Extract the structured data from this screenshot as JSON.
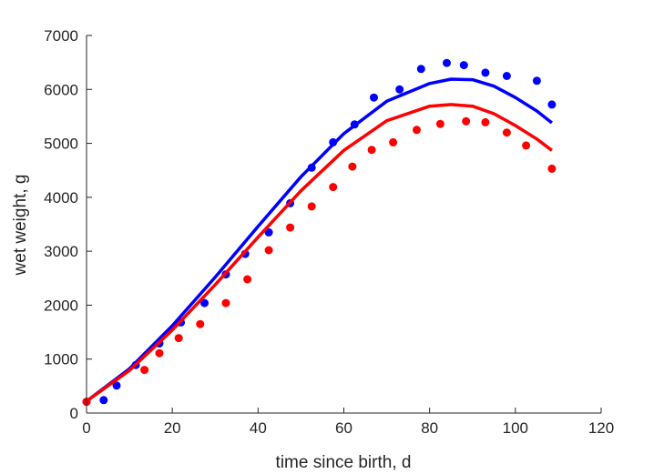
{
  "chart_data": {
    "type": "scatter",
    "title": "",
    "xlabel": "time since birth, d",
    "ylabel": "wet weight, g",
    "xlim": [
      0,
      120
    ],
    "ylim": [
      0,
      7000
    ],
    "xticks": [
      0,
      20,
      40,
      60,
      80,
      100,
      120
    ],
    "yticks": [
      0,
      1000,
      2000,
      3000,
      4000,
      5000,
      6000,
      7000
    ],
    "grid": false,
    "legend": "none",
    "series": [
      {
        "color": "#0000ff",
        "points": [
          [
            0,
            210
          ],
          [
            4,
            240
          ],
          [
            7,
            510
          ],
          [
            11.5,
            890
          ],
          [
            17,
            1290
          ],
          [
            22,
            1680
          ],
          [
            27.5,
            2040
          ],
          [
            32.5,
            2570
          ],
          [
            37,
            2950
          ],
          [
            42.5,
            3350
          ],
          [
            47.5,
            3890
          ],
          [
            52.5,
            4550
          ],
          [
            57.5,
            5020
          ],
          [
            62.5,
            5350
          ],
          [
            67,
            5850
          ],
          [
            73,
            6000
          ],
          [
            78,
            6380
          ],
          [
            84,
            6490
          ],
          [
            88,
            6450
          ],
          [
            93,
            6310
          ],
          [
            98,
            6250
          ],
          [
            105,
            6160
          ],
          [
            108.5,
            5720
          ]
        ],
        "fit": [
          [
            0,
            220
          ],
          [
            10,
            820
          ],
          [
            20,
            1620
          ],
          [
            30,
            2520
          ],
          [
            40,
            3460
          ],
          [
            50,
            4380
          ],
          [
            60,
            5180
          ],
          [
            70,
            5780
          ],
          [
            80,
            6110
          ],
          [
            85,
            6190
          ],
          [
            90,
            6180
          ],
          [
            95,
            6060
          ],
          [
            100,
            5850
          ],
          [
            105,
            5600
          ],
          [
            108.5,
            5380
          ]
        ]
      },
      {
        "color": "#ff0000",
        "points": [
          [
            0,
            210
          ],
          [
            13.5,
            800
          ],
          [
            17,
            1110
          ],
          [
            21.5,
            1390
          ],
          [
            26.5,
            1650
          ],
          [
            32.5,
            2040
          ],
          [
            37.5,
            2480
          ],
          [
            42.5,
            3020
          ],
          [
            47.5,
            3440
          ],
          [
            52.5,
            3830
          ],
          [
            57.5,
            4190
          ],
          [
            62,
            4570
          ],
          [
            66.5,
            4880
          ],
          [
            71.5,
            5020
          ],
          [
            77,
            5250
          ],
          [
            82.5,
            5360
          ],
          [
            88.5,
            5410
          ],
          [
            93,
            5390
          ],
          [
            98,
            5200
          ],
          [
            102.5,
            4960
          ],
          [
            108.5,
            4530
          ]
        ],
        "fit": [
          [
            0,
            220
          ],
          [
            10,
            790
          ],
          [
            20,
            1540
          ],
          [
            30,
            2380
          ],
          [
            40,
            3260
          ],
          [
            50,
            4120
          ],
          [
            60,
            4870
          ],
          [
            70,
            5420
          ],
          [
            80,
            5690
          ],
          [
            85,
            5720
          ],
          [
            90,
            5690
          ],
          [
            95,
            5550
          ],
          [
            100,
            5330
          ],
          [
            105,
            5080
          ],
          [
            108.5,
            4870
          ]
        ]
      }
    ]
  }
}
